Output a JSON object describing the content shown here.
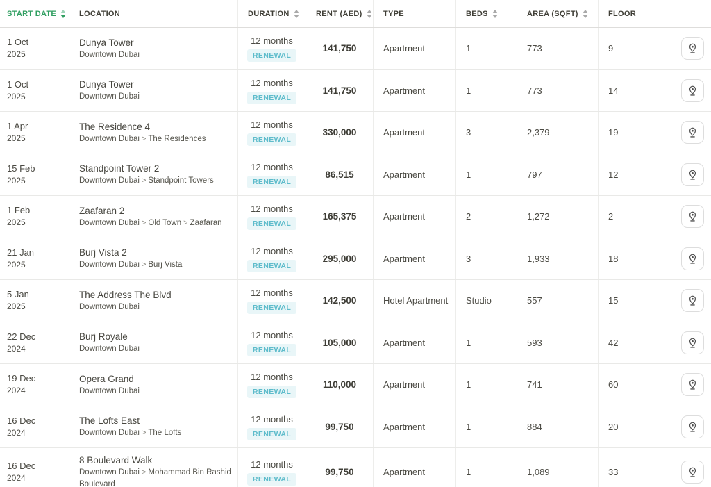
{
  "theme": {
    "accent_green": "#2f9e60",
    "badge_text_color": "#5ebccb",
    "badge_bg_color": "#e9f6f8"
  },
  "table": {
    "breadcrumb_separator": ">",
    "columns": [
      {
        "key": "start_date",
        "label": "START DATE",
        "sortable": true,
        "sort_state": "desc"
      },
      {
        "key": "location",
        "label": "LOCATION",
        "sortable": false,
        "sort_state": "none"
      },
      {
        "key": "duration",
        "label": "DURATION",
        "sortable": true,
        "sort_state": "unsorted"
      },
      {
        "key": "rent",
        "label": "RENT (AED)",
        "sortable": true,
        "sort_state": "unsorted"
      },
      {
        "key": "type",
        "label": "TYPE",
        "sortable": false,
        "sort_state": "none"
      },
      {
        "key": "beds",
        "label": "BEDS",
        "sortable": true,
        "sort_state": "unsorted"
      },
      {
        "key": "area",
        "label": "AREA (SQFT)",
        "sortable": true,
        "sort_state": "unsorted"
      },
      {
        "key": "floor",
        "label": "FLOOR",
        "sortable": false,
        "sort_state": "none"
      }
    ],
    "rows": [
      {
        "date_day": "1 Oct",
        "date_year": "2025",
        "name": "Dunya Tower",
        "breadcrumb": [
          "Downtown Dubai"
        ],
        "duration": "12 months",
        "badge": "RENEWAL",
        "rent": "141,750",
        "type": "Apartment",
        "beds": "1",
        "area": "773",
        "floor": "9"
      },
      {
        "date_day": "1 Oct",
        "date_year": "2025",
        "name": "Dunya Tower",
        "breadcrumb": [
          "Downtown Dubai"
        ],
        "duration": "12 months",
        "badge": "RENEWAL",
        "rent": "141,750",
        "type": "Apartment",
        "beds": "1",
        "area": "773",
        "floor": "14"
      },
      {
        "date_day": "1 Apr",
        "date_year": "2025",
        "name": "The Residence 4",
        "breadcrumb": [
          "Downtown Dubai",
          "The Residences"
        ],
        "duration": "12 months",
        "badge": "RENEWAL",
        "rent": "330,000",
        "type": "Apartment",
        "beds": "3",
        "area": "2,379",
        "floor": "19"
      },
      {
        "date_day": "15 Feb",
        "date_year": "2025",
        "name": "Standpoint Tower 2",
        "breadcrumb": [
          "Downtown Dubai",
          "Standpoint Towers"
        ],
        "duration": "12 months",
        "badge": "RENEWAL",
        "rent": "86,515",
        "type": "Apartment",
        "beds": "1",
        "area": "797",
        "floor": "12"
      },
      {
        "date_day": "1 Feb",
        "date_year": "2025",
        "name": "Zaafaran 2",
        "breadcrumb": [
          "Downtown Dubai",
          "Old Town",
          "Zaafaran"
        ],
        "duration": "12 months",
        "badge": "RENEWAL",
        "rent": "165,375",
        "type": "Apartment",
        "beds": "2",
        "area": "1,272",
        "floor": "2"
      },
      {
        "date_day": "21 Jan",
        "date_year": "2025",
        "name": "Burj Vista 2",
        "breadcrumb": [
          "Downtown Dubai",
          "Burj Vista"
        ],
        "duration": "12 months",
        "badge": "RENEWAL",
        "rent": "295,000",
        "type": "Apartment",
        "beds": "3",
        "area": "1,933",
        "floor": "18"
      },
      {
        "date_day": "5 Jan",
        "date_year": "2025",
        "name": "The Address The Blvd",
        "breadcrumb": [
          "Downtown Dubai"
        ],
        "duration": "12 months",
        "badge": "RENEWAL",
        "rent": "142,500",
        "type": "Hotel Apartment",
        "beds": "Studio",
        "area": "557",
        "floor": "15"
      },
      {
        "date_day": "22 Dec",
        "date_year": "2024",
        "name": "Burj Royale",
        "breadcrumb": [
          "Downtown Dubai"
        ],
        "duration": "12 months",
        "badge": "RENEWAL",
        "rent": "105,000",
        "type": "Apartment",
        "beds": "1",
        "area": "593",
        "floor": "42"
      },
      {
        "date_day": "19 Dec",
        "date_year": "2024",
        "name": "Opera Grand",
        "breadcrumb": [
          "Downtown Dubai"
        ],
        "duration": "12 months",
        "badge": "RENEWAL",
        "rent": "110,000",
        "type": "Apartment",
        "beds": "1",
        "area": "741",
        "floor": "60"
      },
      {
        "date_day": "16 Dec",
        "date_year": "2024",
        "name": "The Lofts East",
        "breadcrumb": [
          "Downtown Dubai",
          "The Lofts"
        ],
        "duration": "12 months",
        "badge": "RENEWAL",
        "rent": "99,750",
        "type": "Apartment",
        "beds": "1",
        "area": "884",
        "floor": "20"
      },
      {
        "date_day": "16 Dec",
        "date_year": "2024",
        "name": "8 Boulevard Walk",
        "breadcrumb": [
          "Downtown Dubai",
          "Mohammad Bin Rashid Boulevard"
        ],
        "duration": "12 months",
        "badge": "RENEWAL",
        "rent": "99,750",
        "type": "Apartment",
        "beds": "1",
        "area": "1,089",
        "floor": "33"
      }
    ]
  }
}
